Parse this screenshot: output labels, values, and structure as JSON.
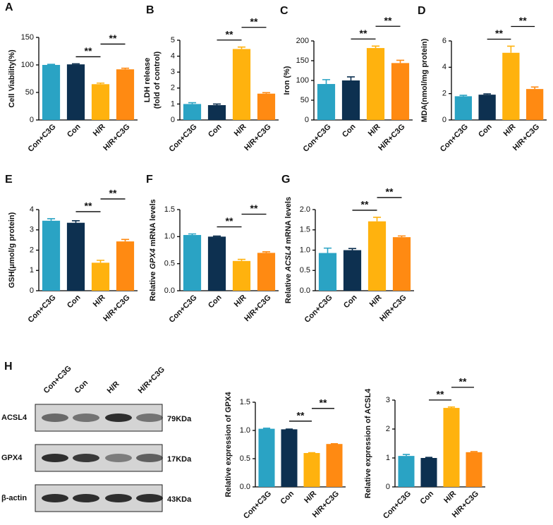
{
  "chart_data": [
    {
      "type": "bar",
      "panel": "A",
      "ylabel": "Cell Viability(%)",
      "categories": [
        "Con+C3G",
        "Con",
        "H/R",
        "H/R+C3G"
      ],
      "values": [
        100,
        101,
        65,
        92
      ],
      "errors": [
        1,
        1,
        2,
        2
      ],
      "colors": [
        "#2aa3c4",
        "#0d3050",
        "#ffb20e",
        "#ff8a12"
      ],
      "ylim": [
        0,
        150
      ],
      "yticks": [
        0,
        50,
        100,
        150
      ],
      "annotations": [
        {
          "text": "**",
          "between": [
            1,
            2
          ]
        },
        {
          "text": "**",
          "between": [
            2,
            3
          ]
        }
      ]
    },
    {
      "type": "bar",
      "panel": "B",
      "ylabel_lines": [
        "LDH release",
        "(fold of control)"
      ],
      "categories": [
        "Con+C3G",
        "Con",
        "H/R",
        "H/R+C3G"
      ],
      "values": [
        1.0,
        0.93,
        4.45,
        1.65
      ],
      "errors": [
        0.08,
        0.07,
        0.12,
        0.06
      ],
      "colors": [
        "#2aa3c4",
        "#0d3050",
        "#ffb20e",
        "#ff8a12"
      ],
      "ylim": [
        0,
        5
      ],
      "yticks": [
        0,
        1,
        2,
        3,
        4,
        5
      ],
      "annotations": [
        {
          "text": "**",
          "between": [
            1,
            2
          ]
        },
        {
          "text": "**",
          "between": [
            2,
            3
          ]
        }
      ]
    },
    {
      "type": "bar",
      "panel": "C",
      "ylabel": "Iron (%)",
      "categories": [
        "Con+C3G",
        "Con",
        "H/R",
        "H/R+C3G"
      ],
      "values": [
        91,
        100,
        182,
        144
      ],
      "errors": [
        11,
        9,
        5,
        7
      ],
      "colors": [
        "#2aa3c4",
        "#0d3050",
        "#ffb20e",
        "#ff8a12"
      ],
      "ylim": [
        0,
        200
      ],
      "yticks": [
        0,
        50,
        100,
        150,
        200
      ],
      "annotations": [
        {
          "text": "**",
          "between": [
            1,
            2
          ]
        },
        {
          "text": "**",
          "between": [
            2,
            3
          ]
        }
      ]
    },
    {
      "type": "bar",
      "panel": "D",
      "ylabel": "MDA(nmol/mg protein)",
      "categories": [
        "Con+C3G",
        "Con",
        "H/R",
        "H/R+C3G"
      ],
      "values": [
        1.8,
        1.92,
        5.1,
        2.35
      ],
      "errors": [
        0.07,
        0.06,
        0.5,
        0.15
      ],
      "colors": [
        "#2aa3c4",
        "#0d3050",
        "#ffb20e",
        "#ff8a12"
      ],
      "ylim": [
        0,
        6
      ],
      "yticks": [
        0,
        2,
        4,
        6
      ],
      "annotations": [
        {
          "text": "**",
          "between": [
            1,
            2
          ]
        },
        {
          "text": "**",
          "between": [
            2,
            3
          ]
        }
      ]
    },
    {
      "type": "bar",
      "panel": "E",
      "ylabel": "GSH(μmol/g protein)",
      "categories": [
        "Con+C3G",
        "Con",
        "H/R",
        "H/R+C3G"
      ],
      "values": [
        3.45,
        3.35,
        1.38,
        2.43
      ],
      "errors": [
        0.1,
        0.1,
        0.12,
        0.1
      ],
      "colors": [
        "#2aa3c4",
        "#0d3050",
        "#ffb20e",
        "#ff8a12"
      ],
      "ylim": [
        0,
        4
      ],
      "yticks": [
        0,
        1,
        2,
        3,
        4
      ],
      "annotations": [
        {
          "text": "**",
          "between": [
            1,
            2
          ]
        },
        {
          "text": "**",
          "between": [
            2,
            3
          ]
        }
      ]
    },
    {
      "type": "bar",
      "panel": "F",
      "ylabel_parts": [
        {
          "text": "Relative "
        },
        {
          "text": "GPX4",
          "italic": true
        },
        {
          "text": " mRNA levels"
        }
      ],
      "categories": [
        "Con+C3G",
        "Con",
        "H/R",
        "H/R+C3G"
      ],
      "values": [
        1.03,
        1.0,
        0.55,
        0.7
      ],
      "errors": [
        0.02,
        0.01,
        0.03,
        0.02
      ],
      "colors": [
        "#2aa3c4",
        "#0d3050",
        "#ffb20e",
        "#ff8a12"
      ],
      "ylim": [
        0,
        1.5
      ],
      "yticks": [
        {
          "value": 0,
          "label": "0.0"
        },
        {
          "value": 0.5,
          "label": "0.5"
        },
        {
          "value": 1,
          "label": "1.0"
        },
        {
          "value": 1.5,
          "label": "1.5"
        }
      ],
      "annotations": [
        {
          "text": "**",
          "between": [
            1,
            2
          ]
        },
        {
          "text": "**",
          "between": [
            2,
            3
          ]
        }
      ]
    },
    {
      "type": "bar",
      "panel": "G",
      "ylabel_parts": [
        {
          "text": "Relative "
        },
        {
          "text": "ACSL4",
          "italic": true
        },
        {
          "text": " mRNA levels"
        }
      ],
      "categories": [
        "Con+C3G",
        "Con",
        "H/R",
        "H/R+C3G"
      ],
      "values": [
        0.93,
        1.0,
        1.71,
        1.32
      ],
      "errors": [
        0.12,
        0.04,
        0.1,
        0.03
      ],
      "colors": [
        "#2aa3c4",
        "#0d3050",
        "#ffb20e",
        "#ff8a12"
      ],
      "ylim": [
        0,
        2
      ],
      "yticks": [
        {
          "value": 0,
          "label": "0.0"
        },
        {
          "value": 0.5,
          "label": "0.5"
        },
        {
          "value": 1,
          "label": "1.0"
        },
        {
          "value": 1.5,
          "label": "1.5"
        },
        {
          "value": 2,
          "label": "2.0"
        }
      ],
      "annotations": [
        {
          "text": "**",
          "between": [
            1,
            2
          ]
        },
        {
          "text": "**",
          "between": [
            2,
            3
          ]
        }
      ]
    },
    {
      "type": "bar",
      "ylabel": "Relative expression of GPX4",
      "categories": [
        "Con+C3G",
        "Con",
        "H/R",
        "H/R+C3G"
      ],
      "values": [
        1.03,
        1.02,
        0.6,
        0.76
      ],
      "errors": [
        0.01,
        0.005,
        0.005,
        0.005
      ],
      "colors": [
        "#2aa3c4",
        "#0d3050",
        "#ffb20e",
        "#ff8a12"
      ],
      "ylim": [
        0,
        1.5
      ],
      "yticks": [
        {
          "value": 0,
          "label": "0.0"
        },
        {
          "value": 0.5,
          "label": "0.5"
        },
        {
          "value": 1,
          "label": "1.0"
        },
        {
          "value": 1.5,
          "label": "1.5"
        }
      ],
      "annotations": [
        {
          "text": "**",
          "between": [
            1,
            2
          ]
        },
        {
          "text": "**",
          "between": [
            2,
            3
          ]
        }
      ]
    },
    {
      "type": "bar",
      "ylabel": "Relative expression of ACSL4",
      "categories": [
        "Con+C3G",
        "Con",
        "H/R",
        "H/R+C3G"
      ],
      "values": [
        1.07,
        1.0,
        2.73,
        1.2
      ],
      "errors": [
        0.05,
        0.02,
        0.03,
        0.02
      ],
      "colors": [
        "#2aa3c4",
        "#0d3050",
        "#ffb20e",
        "#ff8a12"
      ],
      "ylim": [
        0,
        3
      ],
      "yticks": [
        0,
        1,
        2,
        3
      ],
      "annotations": [
        {
          "text": "**",
          "between": [
            1,
            2
          ]
        },
        {
          "text": "**",
          "between": [
            2,
            3
          ]
        }
      ]
    }
  ],
  "blot": {
    "panel": "H",
    "lanes": [
      "Con+C3G",
      "Con",
      "H/R",
      "H/R+C3G"
    ],
    "rows": [
      {
        "protein": "ACSL4",
        "size": "79KDa"
      },
      {
        "protein": "GPX4",
        "size": "17KDa"
      },
      {
        "protein": "β-actin",
        "size": "43KDa"
      }
    ]
  }
}
